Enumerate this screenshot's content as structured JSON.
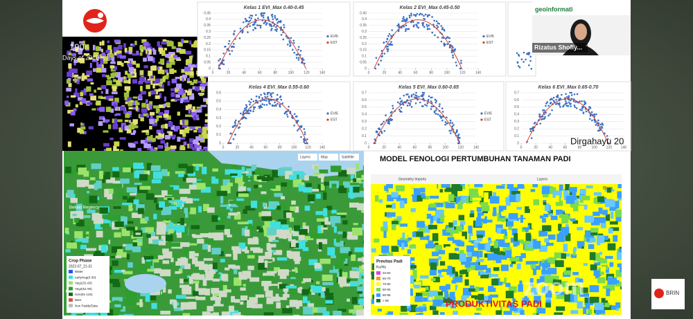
{
  "logo_panel": {
    "day": "190",
    "days_label": "Days of 2019"
  },
  "charts": [
    {
      "title": "Kelas 1 EVI_Max 0.40-0.45",
      "xticks": [
        0,
        20,
        40,
        60,
        80,
        100,
        120,
        140
      ],
      "yticks": [
        0,
        0.05,
        0.1,
        0.15,
        0.2,
        0.25,
        0.3,
        0.35,
        0.4,
        0.45
      ],
      "legend": [
        "EVI5",
        "EST"
      ]
    },
    {
      "title": "Kelas 2 EVI_Max 0.45-0.50",
      "xticks": [
        0,
        20,
        40,
        60,
        80,
        100,
        120,
        140
      ],
      "yticks": [
        0,
        0.05,
        0.1,
        0.15,
        0.2,
        0.25,
        0.3,
        0.35,
        0.4,
        0.45
      ],
      "legend": [
        "EVI5",
        "EST"
      ]
    },
    {
      "title": "Kelas 4 EVI_Max 0.55-0.60",
      "xticks": [
        0,
        20,
        40,
        60,
        80,
        100,
        120,
        140
      ],
      "yticks": [
        0,
        0.1,
        0.2,
        0.3,
        0.4,
        0.5,
        0.6
      ],
      "legend": [
        "EVI5",
        "EST"
      ]
    },
    {
      "title": "Kelas 5 EVI_Max 0.60-0.65",
      "xticks": [
        0,
        20,
        40,
        60,
        80,
        100,
        120,
        140
      ],
      "yticks": [
        0,
        0.1,
        0.2,
        0.3,
        0.4,
        0.5,
        0.6,
        0.7
      ],
      "legend": [
        "EVI5",
        "EST"
      ]
    },
    {
      "title": "Kelas 6 EVI_Max 0.65-0.70",
      "xticks": [
        0,
        20,
        40,
        60,
        80,
        100,
        120,
        140
      ],
      "yticks": [
        0,
        0.1,
        0.2,
        0.3,
        0.4,
        0.5,
        0.6,
        0.7
      ]
    }
  ],
  "video": {
    "participant_name": "Rizatus Shofiy...",
    "banner": "geoinformati"
  },
  "overlay_text": "Dirgahayu 20",
  "section_title": "MODEL FENOLOGI PERTUMBUHAN TANAMAN PADI",
  "crop_map": {
    "legend_title": "Crop Phase",
    "legend_date": "2022-07_21-31",
    "legend_items": [
      {
        "label": "Water",
        "color": "#2255ee"
      },
      {
        "label": "early/veg(0-30)",
        "color": "#40e0e0"
      },
      {
        "label": "Veg1(31-60)",
        "color": "#9be36b"
      },
      {
        "label": "Veg2(61-90)",
        "color": "#2e9e2e"
      },
      {
        "label": "Gen(91-120)",
        "color": "#146a14"
      },
      {
        "label": "Bare",
        "color": "#d9534f"
      },
      {
        "label": "Non Paddy/Data",
        "color": "#bdbdbd"
      }
    ],
    "place": "Bekasi Regency",
    "buttons": [
      "Layers",
      "Map",
      "Satellite"
    ]
  },
  "productivity_map": {
    "title": "PRODUKTIVITAS PADI",
    "legend_title": "Previtas Padi",
    "legend_unit": "Ku/Ha",
    "legend_items": [
      {
        "label": "33-60",
        "color": "#e040e0"
      },
      {
        "label": "60-70",
        "color": "#ff9900"
      },
      {
        "label": "70-80",
        "color": "#ffff00"
      },
      {
        "label": "80-90",
        "color": "#7bdc4a"
      },
      {
        "label": "90-95",
        "color": "#3aa0ff"
      },
      {
        "label": "> 95",
        "color": "#1f7a2a"
      }
    ],
    "place": "Blora",
    "search": "Geometry Imports",
    "button": "Layers"
  },
  "zoom_watermark": "zoom",
  "brin_label": "BRIN"
}
